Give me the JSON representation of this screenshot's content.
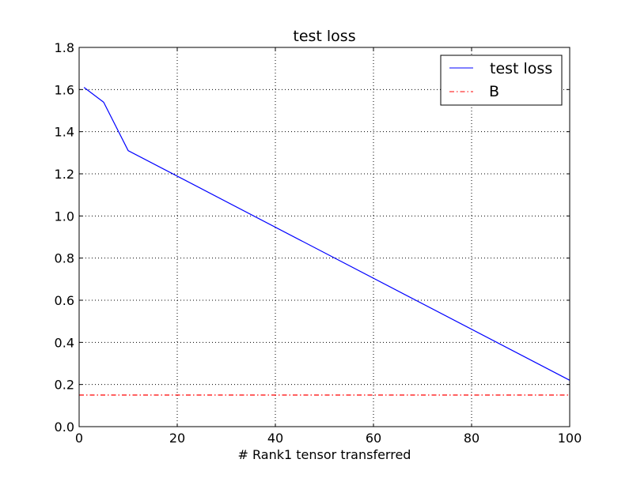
{
  "chart_data": {
    "type": "line",
    "title": "test loss",
    "xlabel": "# Rank1 tensor transferred",
    "ylabel": "",
    "xlim": [
      0,
      100
    ],
    "ylim": [
      0,
      1.8
    ],
    "xticks": [
      0,
      20,
      40,
      60,
      80,
      100
    ],
    "yticks": [
      0.0,
      0.2,
      0.4,
      0.6,
      0.8,
      1.0,
      1.2,
      1.4,
      1.6,
      1.8
    ],
    "xtick_labels": [
      "0",
      "20",
      "40",
      "60",
      "80",
      "100"
    ],
    "ytick_labels": [
      "0.0",
      "0.2",
      "0.4",
      "0.6",
      "0.8",
      "1.0",
      "1.2",
      "1.4",
      "1.6",
      "1.8"
    ],
    "grid": true,
    "grid_style": "dotted",
    "legend_position": "top-right",
    "series": [
      {
        "name": "test loss",
        "color": "#0000ff",
        "line_style": "solid",
        "x": [
          1,
          5,
          10,
          100
        ],
        "y": [
          1.61,
          1.54,
          1.31,
          0.22
        ]
      },
      {
        "name": "B",
        "color": "#ff0000",
        "line_style": "dashdot",
        "x": [
          0,
          100
        ],
        "y": [
          0.15,
          0.15
        ]
      }
    ]
  }
}
